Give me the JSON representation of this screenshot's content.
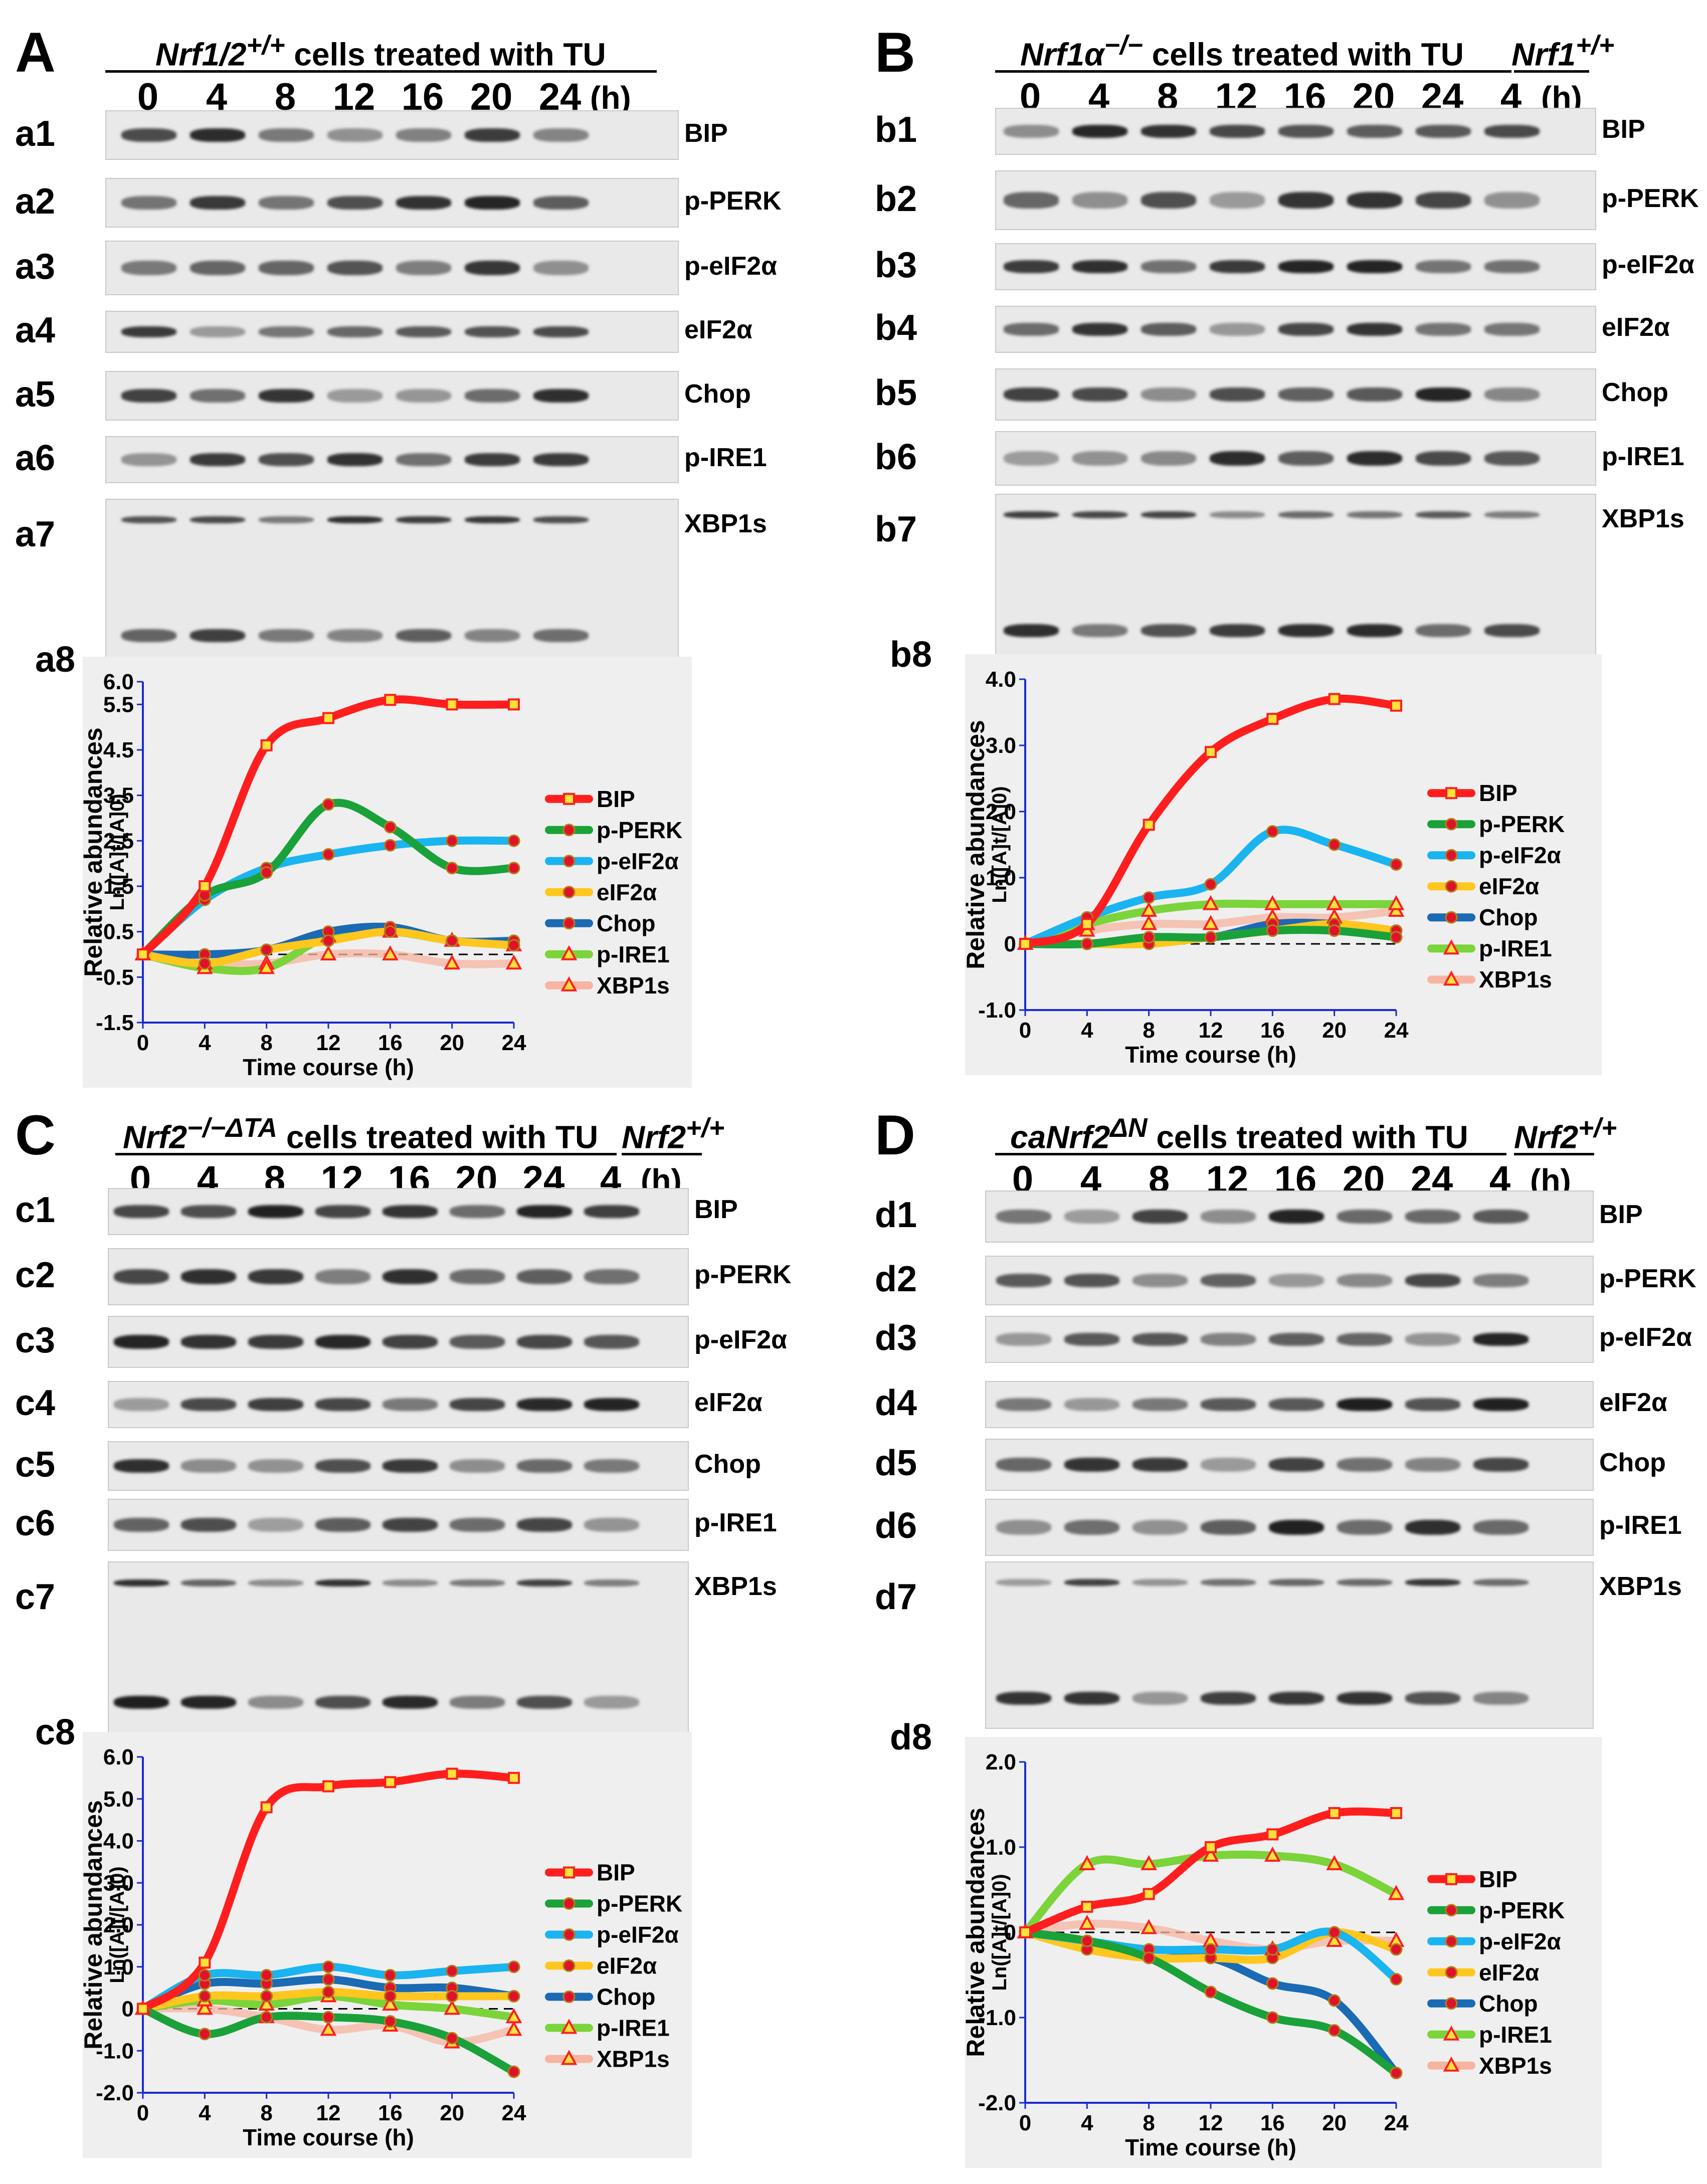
{
  "timepoints": [
    "0",
    "4",
    "8",
    "12",
    "16",
    "20",
    "24"
  ],
  "unit": "(h)",
  "control_time": "4",
  "proteins": [
    "BIP",
    "p-PERK",
    "p-eIF2α",
    "eIF2α",
    "Chop",
    "p-IRE1",
    "XBP1s"
  ],
  "axis": {
    "xlabel": "Time course (h)",
    "ylabel_top": "Relative abundances",
    "ylabel_bottom": "Ln([A]t/[A]0)"
  },
  "series_colors": {
    "BIP": "#ff1e1e",
    "p-PERK": "#1aa13a",
    "p-eIF2α": "#1ab4f0",
    "eIF2α": "#ffc61e",
    "Chop": "#1a6ab4",
    "p-IRE1": "#7ad43a",
    "XBP1s": "#f7b4a0"
  },
  "panels": [
    {
      "letter": "A",
      "prefix": "a",
      "genotype": "Nrf1/2",
      "genotype_sup": "+/+",
      "condition": " cells treated with TU",
      "control_genotype": "",
      "control_sup": ""
    },
    {
      "letter": "B",
      "prefix": "b",
      "genotype": "Nrf1α",
      "genotype_sup": "−/−",
      "condition": " cells treated with TU",
      "control_genotype": "Nrf1",
      "control_sup": "+/+"
    },
    {
      "letter": "C",
      "prefix": "c",
      "genotype": "Nrf2",
      "genotype_sup": "−/−ΔTA",
      "condition": " cells treated with TU",
      "control_genotype": "Nrf2",
      "control_sup": "+/+"
    },
    {
      "letter": "D",
      "prefix": "d",
      "genotype": "caNrf2",
      "genotype_sup": "ΔN",
      "condition": " cells treated with TU",
      "control_genotype": "Nrf2",
      "control_sup": "+/+"
    }
  ],
  "chart_data": [
    {
      "panel": "a8",
      "type": "line",
      "x": [
        0,
        4,
        8,
        12,
        16,
        20,
        24
      ],
      "ylim": [
        -1.5,
        6.0
      ],
      "yticks": [
        "6.0",
        "5.5",
        "4.5",
        "3.5",
        "2.5",
        "1.5",
        "0.5",
        "-0.5",
        "-1.5"
      ],
      "ytick_values": [
        6.0,
        5.5,
        4.5,
        3.5,
        2.5,
        1.5,
        0.5,
        -0.5,
        -1.5
      ],
      "xticks": [
        "0",
        "4",
        "8",
        "12",
        "16",
        "20",
        "24"
      ],
      "series": [
        {
          "name": "BIP",
          "values": [
            0,
            1.5,
            4.6,
            5.2,
            5.6,
            5.5,
            5.5
          ]
        },
        {
          "name": "p-PERK",
          "values": [
            0,
            1.3,
            1.8,
            3.3,
            2.8,
            1.9,
            1.9
          ]
        },
        {
          "name": "p-eIF2α",
          "values": [
            0,
            1.2,
            1.9,
            2.2,
            2.4,
            2.5,
            2.5
          ]
        },
        {
          "name": "eIF2α",
          "values": [
            0,
            -0.2,
            0.1,
            0.3,
            0.5,
            0.3,
            0.2
          ]
        },
        {
          "name": "Chop",
          "values": [
            0,
            0.0,
            0.1,
            0.5,
            0.6,
            0.3,
            0.3
          ]
        },
        {
          "name": "p-IRE1",
          "values": [
            0,
            -0.3,
            -0.3,
            0.4,
            0.5,
            0.3,
            0.2
          ]
        },
        {
          "name": "XBP1s",
          "values": [
            0,
            -0.2,
            -0.2,
            0.0,
            0.0,
            -0.2,
            -0.2
          ]
        }
      ]
    },
    {
      "panel": "b8",
      "type": "line",
      "x": [
        0,
        4,
        8,
        12,
        16,
        20,
        24
      ],
      "ylim": [
        -1.0,
        4.0
      ],
      "yticks": [
        "4.0",
        "3.0",
        "2.0",
        "1.0",
        "0",
        "-1.0"
      ],
      "ytick_values": [
        4.0,
        3.0,
        2.0,
        1.0,
        0,
        -1.0
      ],
      "xticks": [
        "0",
        "4",
        "8",
        "12",
        "16",
        "20",
        "24"
      ],
      "series": [
        {
          "name": "BIP",
          "values": [
            0,
            0.3,
            1.8,
            2.9,
            3.4,
            3.7,
            3.6
          ]
        },
        {
          "name": "p-PERK",
          "values": [
            0,
            0.0,
            0.1,
            0.1,
            0.2,
            0.2,
            0.1
          ]
        },
        {
          "name": "p-eIF2α",
          "values": [
            0,
            0.4,
            0.7,
            0.9,
            1.7,
            1.5,
            1.2
          ]
        },
        {
          "name": "eIF2α",
          "values": [
            0,
            0.0,
            0.0,
            0.1,
            0.2,
            0.3,
            0.2
          ]
        },
        {
          "name": "Chop",
          "values": [
            0,
            0.0,
            0.1,
            0.1,
            0.3,
            0.3,
            0.2
          ]
        },
        {
          "name": "p-IRE1",
          "values": [
            0,
            0.3,
            0.5,
            0.6,
            0.6,
            0.6,
            0.6
          ]
        },
        {
          "name": "XBP1s",
          "values": [
            0,
            0.2,
            0.3,
            0.3,
            0.4,
            0.4,
            0.5
          ]
        }
      ]
    },
    {
      "panel": "c8",
      "type": "line",
      "x": [
        0,
        4,
        8,
        12,
        16,
        20,
        24
      ],
      "ylim": [
        -2.0,
        6.0
      ],
      "yticks": [
        "6.0",
        "5.0",
        "4.0",
        "3.0",
        "2.0",
        "1.0",
        "0",
        "-1.0",
        "-2.0"
      ],
      "ytick_values": [
        6.0,
        5.0,
        4.0,
        3.0,
        2.0,
        1.0,
        0,
        -1.0,
        -2.0
      ],
      "xticks": [
        "0",
        "4",
        "8",
        "12",
        "16",
        "20",
        "24"
      ],
      "series": [
        {
          "name": "BIP",
          "values": [
            0,
            1.1,
            4.8,
            5.3,
            5.4,
            5.6,
            5.5
          ]
        },
        {
          "name": "p-PERK",
          "values": [
            0,
            -0.6,
            -0.2,
            -0.2,
            -0.3,
            -0.7,
            -1.5
          ]
        },
        {
          "name": "p-eIF2α",
          "values": [
            0,
            0.8,
            0.8,
            1.0,
            0.8,
            0.9,
            1.0
          ]
        },
        {
          "name": "eIF2α",
          "values": [
            0,
            0.3,
            0.3,
            0.4,
            0.3,
            0.3,
            0.3
          ]
        },
        {
          "name": "Chop",
          "values": [
            0,
            0.6,
            0.6,
            0.7,
            0.5,
            0.5,
            0.3
          ]
        },
        {
          "name": "p-IRE1",
          "values": [
            0,
            0.2,
            0.1,
            0.3,
            0.1,
            0.0,
            -0.2
          ]
        },
        {
          "name": "XBP1s",
          "values": [
            0,
            0.0,
            -0.2,
            -0.5,
            -0.4,
            -0.8,
            -0.5
          ]
        }
      ]
    },
    {
      "panel": "d8",
      "type": "line",
      "x": [
        0,
        4,
        8,
        12,
        16,
        20,
        24
      ],
      "ylim": [
        -2.0,
        2.0
      ],
      "yticks": [
        "2.0",
        "1.0",
        "0",
        "-1.0",
        "-2.0"
      ],
      "ytick_values": [
        2.0,
        1.0,
        0,
        -1.0,
        -2.0
      ],
      "xticks": [
        "0",
        "4",
        "8",
        "12",
        "16",
        "20",
        "24"
      ],
      "series": [
        {
          "name": "BIP",
          "values": [
            0,
            0.3,
            0.45,
            1.0,
            1.15,
            1.4,
            1.4
          ]
        },
        {
          "name": "p-PERK",
          "values": [
            0,
            -0.1,
            -0.3,
            -0.7,
            -1.0,
            -1.15,
            -1.65
          ]
        },
        {
          "name": "p-eIF2α",
          "values": [
            0,
            -0.1,
            -0.2,
            -0.2,
            -0.2,
            0.0,
            -0.55
          ]
        },
        {
          "name": "eIF2α",
          "values": [
            0,
            -0.2,
            -0.3,
            -0.3,
            -0.3,
            0.0,
            -0.2
          ]
        },
        {
          "name": "Chop",
          "values": [
            0,
            -0.1,
            -0.3,
            -0.3,
            -0.6,
            -0.8,
            -1.65
          ]
        },
        {
          "name": "p-IRE1",
          "values": [
            0,
            0.8,
            0.8,
            0.9,
            0.9,
            0.8,
            0.45
          ]
        },
        {
          "name": "XBP1s",
          "values": [
            0,
            0.1,
            0.05,
            -0.1,
            -0.2,
            -0.1,
            -0.1
          ]
        }
      ]
    }
  ]
}
